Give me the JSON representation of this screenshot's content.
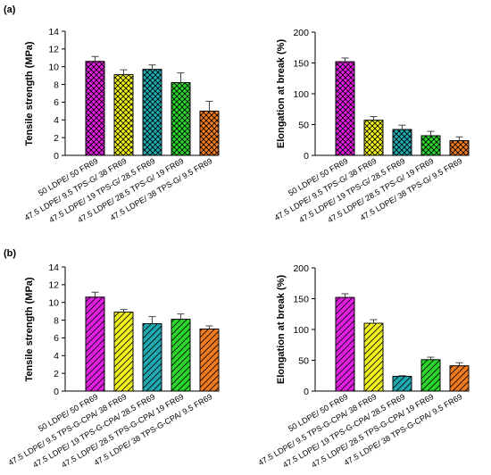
{
  "chart_data": [
    {
      "type": "bar",
      "panel_label": "(a)",
      "ylabel": "Tensile strength (MPa)",
      "ylim": [
        0,
        14
      ],
      "yticks": [
        0,
        2,
        4,
        6,
        8,
        10,
        12,
        14
      ],
      "categories": [
        "50 LDPE/ 50 FR69",
        "47.5 LDPE/ 9.5 TPS-G/ 38 FR69",
        "47.5 LDPE/ 19 TPS-G/ 28.5 FR69",
        "47.5 LDPE/ 28.5 TPS-G/ 19 FR69",
        "47.5 LDPE/ 38 TPS-G/ 9.5 FR69"
      ],
      "values": [
        10.6,
        9.1,
        9.7,
        8.2,
        5.0
      ],
      "errors": [
        0.55,
        0.55,
        0.5,
        1.1,
        1.1
      ],
      "colors": [
        "#e21ee2",
        "#f2f21a",
        "#1eaab0",
        "#2bd62b",
        "#f07a1e"
      ],
      "hatch": "crosshatch",
      "grid": false
    },
    {
      "type": "bar",
      "ylabel": "Elongation at break (%)",
      "ylim": [
        0,
        200
      ],
      "yticks": [
        0,
        50,
        100,
        150,
        200
      ],
      "categories": [
        "50 LDPE/ 50 FR69",
        "47.5 LDPE/ 9.5 TPS-G/ 38 FR69",
        "47.5 LDPE/ 19 TPS-G/ 28.5 FR69",
        "47.5 LDPE/ 28.5 TPS-G/ 19 FR69",
        "47.5 LDPE/ 38 TPS-G/ 9.5 FR69"
      ],
      "values": [
        152,
        57,
        42,
        32,
        24
      ],
      "errors": [
        6,
        6,
        7,
        7,
        6
      ],
      "colors": [
        "#e21ee2",
        "#f2f21a",
        "#1eaab0",
        "#2bd62b",
        "#f07a1e"
      ],
      "hatch": "crosshatch",
      "grid": false
    },
    {
      "type": "bar",
      "panel_label": "(b)",
      "ylabel": "Tensile strength (MPa)",
      "ylim": [
        0,
        14
      ],
      "yticks": [
        0,
        2,
        4,
        6,
        8,
        10,
        12,
        14
      ],
      "categories": [
        "50 LDPE/ 50 FR69",
        "47.5 LDPE/ 9.5 TPS-G-CPA/ 38 FR69",
        "47.5 LDPE/ 19 TPS-G-CPA/ 28.5 FR69",
        "47.5 LDPE/ 28.5 TPS-G-CPA/ 19 FR69",
        "47.5 LDPE/ 38 TPS-G-CPA/ 9.5 FR69"
      ],
      "values": [
        10.6,
        8.9,
        7.6,
        8.1,
        7.0
      ],
      "errors": [
        0.55,
        0.3,
        0.8,
        0.6,
        0.35
      ],
      "colors": [
        "#e21ee2",
        "#f2f21a",
        "#1eaab0",
        "#2bd62b",
        "#f07a1e"
      ],
      "hatch": "diagonal",
      "grid": false
    },
    {
      "type": "bar",
      "ylabel": "Elongation at break (%)",
      "ylim": [
        0,
        200
      ],
      "yticks": [
        0,
        50,
        100,
        150,
        200
      ],
      "categories": [
        "50 LDPE/ 50 FR69",
        "47.5 LDPE/ 9.5 TPS-G-CPA/ 38 FR69",
        "47.5 LDPE/ 19 TPS-G-CPA/ 28.5 FR69",
        "47.5 LDPE/ 28.5 TPS-G-CPA/ 19 FR69",
        "47.5 LDPE/ 38 TPS-G-CPA/ 9.5 FR69"
      ],
      "values": [
        152,
        110,
        24,
        51,
        41
      ],
      "errors": [
        6,
        6,
        1,
        4,
        5
      ],
      "colors": [
        "#e21ee2",
        "#f2f21a",
        "#1eaab0",
        "#2bd62b",
        "#f07a1e"
      ],
      "hatch": "diagonal",
      "grid": false
    }
  ]
}
